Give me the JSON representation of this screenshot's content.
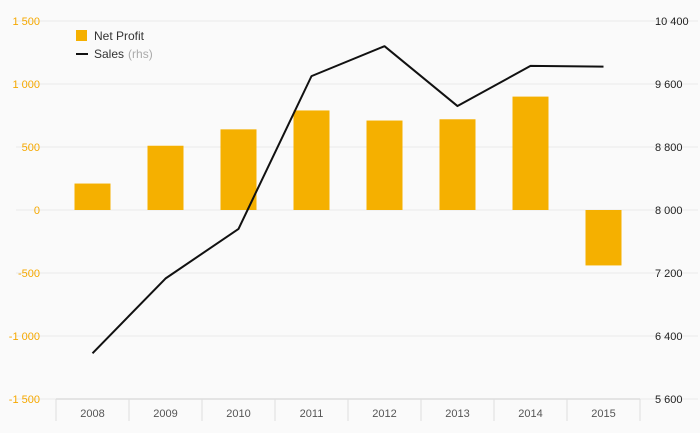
{
  "chart_data": {
    "type": "bar",
    "categories": [
      "2008",
      "2009",
      "2010",
      "2011",
      "2012",
      "2013",
      "2014",
      "2015"
    ],
    "series": [
      {
        "name": "Net Profit",
        "type": "bar",
        "axis": "left",
        "color": "#f5b000",
        "values": [
          210,
          510,
          640,
          790,
          710,
          720,
          900,
          -440
        ]
      },
      {
        "name": "Sales",
        "type": "line",
        "axis": "right",
        "color": "#111111",
        "values": [
          6180,
          7130,
          7760,
          9700,
          10080,
          9320,
          9830,
          9820
        ]
      }
    ],
    "ylim_left": [
      -1500,
      1500
    ],
    "yticks_left": [
      "1 500",
      "1 000",
      "500",
      "0",
      "-500",
      "-1 000",
      "-1 500"
    ],
    "ylim_right": [
      5600,
      10400
    ],
    "yticks_right": [
      "10 400",
      "9 600",
      "8 800",
      "8 000",
      "7 200",
      "6 400",
      "5 600"
    ],
    "legend": {
      "placement": "top-left",
      "items": [
        {
          "label": "Net Profit",
          "note": ""
        },
        {
          "label": "Sales",
          "note": "(rhs)"
        }
      ]
    },
    "grid": true,
    "title": "",
    "xlabel": "",
    "ylabel": ""
  }
}
